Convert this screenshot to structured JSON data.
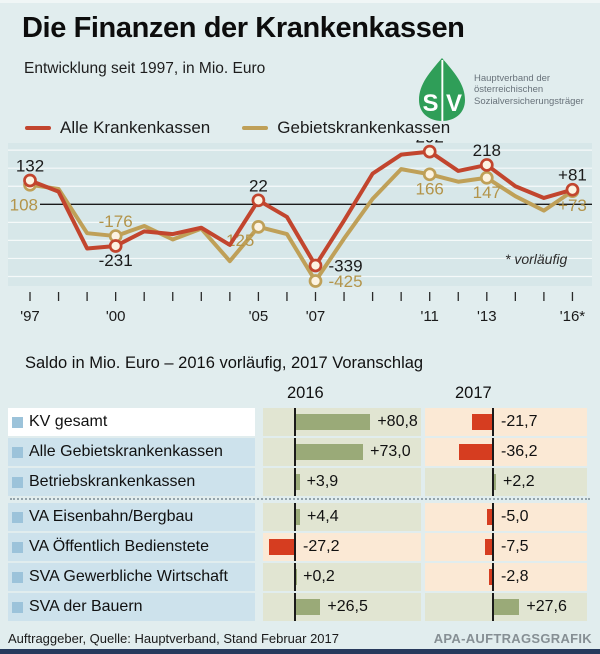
{
  "header": {
    "title": "Die Finanzen der Krankenkassen",
    "subtitle": "Entwicklung seit 1997, in Mio. Euro",
    "logo": {
      "letters": [
        "S",
        "V"
      ],
      "org_lines": [
        "Hauptverband der",
        "österreichischen",
        "Sozialversicherungsträger"
      ]
    }
  },
  "chart_data": {
    "type": "line",
    "x": [
      1997,
      1998,
      1999,
      2000,
      2001,
      2002,
      2003,
      2004,
      2005,
      2006,
      2007,
      2008,
      2009,
      2010,
      2011,
      2012,
      2013,
      2014,
      2015,
      2016
    ],
    "x_tick_labels": [
      "'97",
      "",
      "",
      "'00",
      "",
      "",
      "",
      "",
      "'05",
      "",
      "'07",
      "",
      "",
      "",
      "'11",
      "",
      "'13",
      "",
      "",
      "'16*"
    ],
    "series": [
      {
        "name": "Alle Krankenkassen",
        "color": "#c2452e",
        "label_color": "#1a1a1a",
        "values": [
          132,
          70,
          -245,
          -231,
          -150,
          -165,
          -130,
          -225,
          22,
          -70,
          -339,
          -90,
          170,
          275,
          292,
          185,
          218,
          100,
          35,
          81
        ],
        "points": [
          {
            "year": 1997,
            "label": "132",
            "anchor": "above"
          },
          {
            "year": 2000,
            "label": "-231",
            "anchor": "below"
          },
          {
            "year": 2005,
            "label": "22",
            "anchor": "above"
          },
          {
            "year": 2007,
            "label": "-339",
            "anchor": "right"
          },
          {
            "year": 2011,
            "label": "292",
            "anchor": "above"
          },
          {
            "year": 2013,
            "label": "218",
            "anchor": "above"
          },
          {
            "year": 2016,
            "label": "+81",
            "anchor": "above"
          }
        ]
      },
      {
        "name": "Gebietskrankenkassen",
        "color": "#bfa058",
        "label_color": "#b3944a",
        "values": [
          108,
          85,
          -160,
          -176,
          -120,
          -195,
          -135,
          -315,
          -125,
          -165,
          -425,
          -190,
          30,
          195,
          166,
          125,
          147,
          45,
          -35,
          73
        ],
        "points": [
          {
            "year": 1997,
            "label": "108",
            "anchor": "left-edge"
          },
          {
            "year": 2000,
            "label": "-176",
            "anchor": "above"
          },
          {
            "year": 2005,
            "label": "-125",
            "anchor": "below-left"
          },
          {
            "year": 2007,
            "label": "-425",
            "anchor": "right"
          },
          {
            "year": 2011,
            "label": "166",
            "anchor": "below"
          },
          {
            "year": 2013,
            "label": "147",
            "anchor": "below"
          },
          {
            "year": 2016,
            "label": "+73",
            "anchor": "below"
          }
        ]
      }
    ],
    "ylim": [
      -455,
      345
    ],
    "grid_interval": 100,
    "zero_line": true,
    "legend_position": "top-left",
    "note": "* vorläufig"
  },
  "table": {
    "heading": "Saldo in Mio. Euro – 2016 vorläufig, 2017 Voranschlag",
    "columns": [
      "2016",
      "2017"
    ],
    "rows": [
      {
        "label": "KV gesamt",
        "v2016": 80.8,
        "d2016": "+80,8",
        "v2017": -21.7,
        "d2017": "-21,7",
        "highlight": true
      },
      {
        "label": "Alle Gebietskrankenkassen",
        "v2016": 73.0,
        "d2016": "+73,0",
        "v2017": -36.2,
        "d2017": "-36,2"
      },
      {
        "label": "Betriebskrankenkassen",
        "v2016": 3.9,
        "d2016": "+3,9",
        "v2017": 2.2,
        "d2017": "+2,2"
      },
      {
        "label": "VA Eisenbahn/Bergbau",
        "v2016": 4.4,
        "d2016": "+4,4",
        "v2017": -5.0,
        "d2017": "-5,0"
      },
      {
        "label": "VA Öffentlich Bedienstete",
        "v2016": -27.2,
        "d2016": "-27,2",
        "v2017": -7.5,
        "d2017": "-7,5"
      },
      {
        "label": "SVA Gewerbliche Wirtschaft",
        "v2016": 0.2,
        "d2016": "+0,2",
        "v2017": -2.8,
        "d2017": "-2,8"
      },
      {
        "label": "SVA der Bauern",
        "v2016": 26.5,
        "d2016": "+26,5",
        "v2017": 27.6,
        "d2017": "+27,6"
      }
    ]
  },
  "footer": {
    "source": "Auftraggeber, Quelle: Hauptverband, Stand Februar 2017",
    "credit": "APA-AUFTRAGSGRAFIK"
  },
  "colors": {
    "page_bg": "#e1edee",
    "plot_bg": "#d7e7e9",
    "red_line": "#c2452e",
    "tan_line": "#bfa058",
    "marker_fill": "#fcf3e2",
    "row_blue": "#cde2ec",
    "bullet_blue": "#9cc3da",
    "cell_pos": "#e1e5d2",
    "cell_neg": "#fbe9d5",
    "bar_pos": "#9aaa78",
    "bar_neg": "#d63d20",
    "logo_green": "#2f9e58",
    "footer_bar": "#26395c",
    "credit_gray": "#868f94"
  }
}
